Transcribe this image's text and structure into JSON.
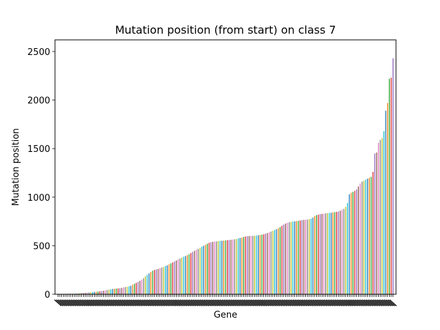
{
  "chart_data": {
    "type": "bar",
    "title": "Mutation position (from start) on class 7",
    "xlabel": "Gene",
    "ylabel": "Mutation position",
    "ylim": [
      0,
      2620
    ],
    "yticks": [
      0,
      500,
      1000,
      1500,
      2000,
      2500
    ],
    "ytick_labels": [
      "0",
      "500",
      "1000",
      "1500",
      "2000",
      "2500"
    ],
    "grid": false,
    "legend": "none",
    "colors": [
      "#1f77b4",
      "#ff7f0e",
      "#2ca02c",
      "#d62728",
      "#9467bd",
      "#8c564b",
      "#e377c2",
      "#7f7f7f",
      "#bcbd22",
      "#17becf"
    ],
    "values": [
      2,
      2,
      3,
      3,
      4,
      4,
      5,
      5,
      6,
      6,
      7,
      8,
      9,
      10,
      12,
      14,
      16,
      18,
      20,
      22,
      24,
      26,
      28,
      30,
      33,
      36,
      40,
      44,
      48,
      52,
      55,
      57,
      59,
      60,
      62,
      66,
      70,
      74,
      78,
      82,
      88,
      98,
      108,
      118,
      128,
      138,
      150,
      165,
      185,
      200,
      215,
      230,
      243,
      250,
      256,
      262,
      268,
      275,
      282,
      290,
      298,
      308,
      318,
      328,
      338,
      348,
      358,
      368,
      378,
      386,
      394,
      402,
      412,
      424,
      436,
      448,
      458,
      468,
      478,
      490,
      500,
      510,
      520,
      530,
      536,
      540,
      543,
      545,
      547,
      549,
      551,
      553,
      555,
      557,
      559,
      561,
      563,
      566,
      570,
      575,
      580,
      585,
      590,
      595,
      598,
      600,
      601,
      602,
      603,
      605,
      608,
      611,
      614,
      618,
      624,
      630,
      638,
      646,
      654,
      662,
      670,
      680,
      692,
      706,
      718,
      728,
      736,
      742,
      746,
      749,
      751,
      754,
      757,
      760,
      763,
      766,
      768,
      770,
      773,
      778,
      790,
      805,
      815,
      820,
      825,
      828,
      830,
      833,
      836,
      838,
      840,
      843,
      846,
      849,
      852,
      860,
      870,
      880,
      900,
      940,
      1030,
      1045,
      1055,
      1065,
      1080,
      1110,
      1140,
      1160,
      1170,
      1180,
      1190,
      1200,
      1210,
      1260,
      1450,
      1460,
      1560,
      1590,
      1610,
      1680,
      1890,
      1970,
      2220,
      2230,
      2430
    ]
  }
}
